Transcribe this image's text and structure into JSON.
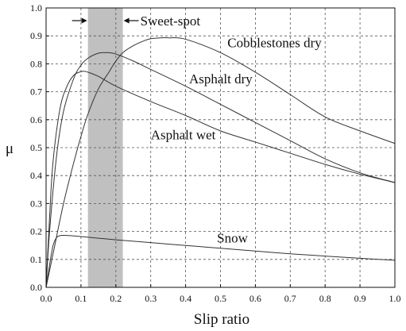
{
  "chart_data": {
    "type": "line",
    "title": "",
    "xlabel": "Slip ratio",
    "ylabel": "μ",
    "xlim": [
      0.0,
      1.0
    ],
    "ylim": [
      0.0,
      1.0
    ],
    "x_ticks": [
      0.0,
      0.1,
      0.2,
      0.3,
      0.4,
      0.5,
      0.6,
      0.7,
      0.8,
      0.9,
      1.0
    ],
    "y_ticks": [
      0.0,
      0.1,
      0.2,
      0.3,
      0.4,
      0.5,
      0.6,
      0.7,
      0.8,
      0.9,
      1.0
    ],
    "x_tick_labels": [
      "0.0",
      "0.1",
      "0.2",
      "0.3",
      "0.4",
      "0.5",
      "0.6",
      "0.7",
      "0.8",
      "0.9",
      "1.0"
    ],
    "y_tick_labels": [
      "0.0",
      "0.1",
      "0.2",
      "0.3",
      "0.4",
      "0.5",
      "0.6",
      "0.7",
      "0.8",
      "0.9",
      "1.0"
    ],
    "grid": true,
    "series_colors": {
      "curve": "#333333",
      "band": "#c0c0c0"
    },
    "shaded_region": {
      "label": "Sweet-spot",
      "x_start": 0.12,
      "x_end": 0.22
    },
    "series": [
      {
        "name": "Cobblestones dry",
        "x": [
          0,
          0.02,
          0.05,
          0.08,
          0.1,
          0.12,
          0.15,
          0.18,
          0.2,
          0.22,
          0.25,
          0.28,
          0.3,
          0.33,
          0.35,
          0.4,
          0.5,
          0.6,
          0.7,
          0.8,
          0.9,
          1.0
        ],
        "values": [
          0,
          0.12,
          0.3,
          0.45,
          0.54,
          0.62,
          0.71,
          0.77,
          0.81,
          0.84,
          0.865,
          0.882,
          0.89,
          0.893,
          0.893,
          0.888,
          0.84,
          0.77,
          0.69,
          0.61,
          0.56,
          0.515
        ]
      },
      {
        "name": "Asphalt dry",
        "x": [
          0,
          0.01,
          0.03,
          0.05,
          0.08,
          0.1,
          0.12,
          0.15,
          0.17,
          0.18,
          0.2,
          0.25,
          0.3,
          0.4,
          0.5,
          0.6,
          0.7,
          0.8,
          0.9,
          1.0
        ],
        "values": [
          0,
          0.2,
          0.47,
          0.63,
          0.75,
          0.795,
          0.82,
          0.838,
          0.84,
          0.84,
          0.835,
          0.81,
          0.78,
          0.72,
          0.655,
          0.59,
          0.525,
          0.46,
          0.41,
          0.375
        ]
      },
      {
        "name": "Asphalt wet",
        "x": [
          0,
          0.01,
          0.02,
          0.04,
          0.06,
          0.08,
          0.1,
          0.11,
          0.12,
          0.15,
          0.2,
          0.3,
          0.4,
          0.5,
          0.6,
          0.7,
          0.8,
          0.9,
          1.0
        ],
        "values": [
          0,
          0.25,
          0.45,
          0.64,
          0.72,
          0.76,
          0.772,
          0.773,
          0.77,
          0.755,
          0.72,
          0.665,
          0.615,
          0.56,
          0.52,
          0.48,
          0.44,
          0.405,
          0.375
        ]
      },
      {
        "name": "Snow",
        "x": [
          0,
          0.01,
          0.02,
          0.03,
          0.04,
          0.05,
          0.07,
          0.1,
          0.2,
          0.3,
          0.4,
          0.5,
          0.6,
          0.7,
          0.8,
          0.9,
          1.0
        ],
        "values": [
          0,
          0.08,
          0.15,
          0.178,
          0.185,
          0.186,
          0.185,
          0.182,
          0.17,
          0.16,
          0.15,
          0.14,
          0.13,
          0.12,
          0.112,
          0.104,
          0.097
        ]
      }
    ],
    "label_positions": [
      {
        "series": "Cobblestones dry",
        "x": 0.52,
        "y": 0.86
      },
      {
        "series": "Asphalt dry",
        "x": 0.41,
        "y": 0.73
      },
      {
        "series": "Asphalt wet",
        "x": 0.3,
        "y": 0.53
      },
      {
        "series": "Snow",
        "x": 0.49,
        "y": 0.16
      }
    ]
  }
}
